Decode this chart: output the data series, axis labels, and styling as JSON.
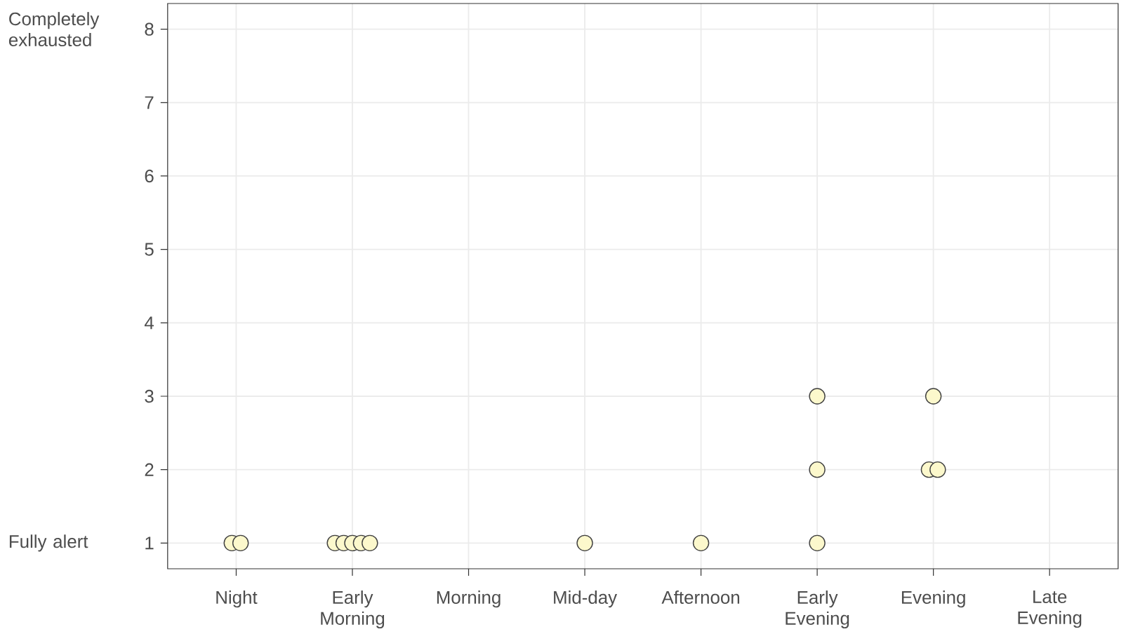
{
  "chart_data": {
    "type": "scatter",
    "categories": [
      "Night",
      "Early Morning",
      "Morning",
      "Mid-day",
      "Afternoon",
      "Early Evening",
      "Evening",
      "Late Evening"
    ],
    "series": [
      {
        "values": [
          1,
          1,
          null,
          1,
          1,
          1,
          2,
          null
        ]
      },
      {
        "values": [
          1,
          1,
          null,
          null,
          null,
          2,
          2,
          null
        ]
      },
      {
        "values": [
          null,
          1,
          null,
          null,
          null,
          3,
          3,
          null
        ]
      },
      {
        "values": [
          null,
          1,
          null,
          null,
          null,
          null,
          null,
          null
        ]
      },
      {
        "values": [
          null,
          1,
          null,
          null,
          null,
          null,
          null,
          null
        ]
      }
    ],
    "color": "#fcf8cc",
    "ylim": [
      0.65,
      8.35
    ],
    "yticks": [
      1,
      2,
      3,
      4,
      5,
      6,
      7,
      8
    ],
    "grid": true,
    "marker": "circle",
    "annotations": [
      "Completely exhausted",
      "Fully alert"
    ]
  }
}
